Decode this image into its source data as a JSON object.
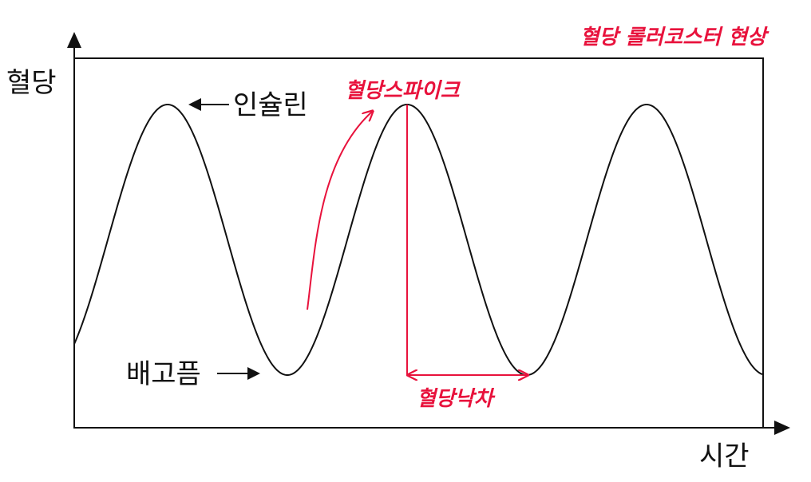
{
  "title": "혈당 롤러코스터 현상",
  "axes": {
    "y_label": "혈당",
    "x_label": "시간"
  },
  "annotations": {
    "insulin": "인슐린",
    "hunger": "배고픔",
    "spike": "혈당스파이크",
    "drop": "혈당낙차"
  },
  "colors": {
    "curve": "#111111",
    "accent": "#e8123c"
  }
}
